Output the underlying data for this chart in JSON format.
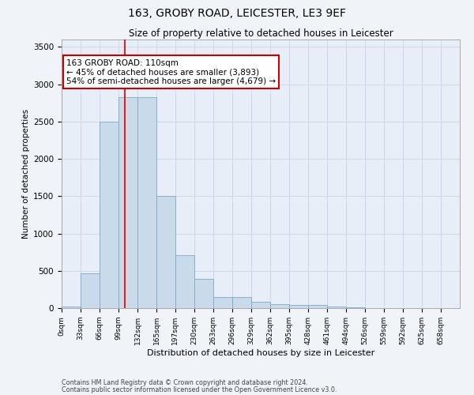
{
  "title1": "163, GROBY ROAD, LEICESTER, LE3 9EF",
  "title2": "Size of property relative to detached houses in Leicester",
  "xlabel": "Distribution of detached houses by size in Leicester",
  "ylabel": "Number of detached properties",
  "bin_labels": [
    "0sqm",
    "33sqm",
    "66sqm",
    "99sqm",
    "132sqm",
    "165sqm",
    "197sqm",
    "230sqm",
    "263sqm",
    "296sqm",
    "329sqm",
    "362sqm",
    "395sqm",
    "428sqm",
    "461sqm",
    "494sqm",
    "526sqm",
    "559sqm",
    "592sqm",
    "625sqm",
    "658sqm"
  ],
  "bin_edges": [
    0,
    33,
    66,
    99,
    132,
    165,
    197,
    230,
    263,
    296,
    329,
    362,
    395,
    428,
    461,
    494,
    526,
    559,
    592,
    625,
    658
  ],
  "bar_heights": [
    20,
    470,
    2500,
    2830,
    2830,
    1500,
    710,
    390,
    150,
    150,
    80,
    55,
    45,
    45,
    20,
    10,
    5,
    5,
    3,
    2,
    0
  ],
  "bar_color": "#c9daea",
  "bar_edge_color": "#7aaac8",
  "grid_color": "#d0d8e8",
  "bg_color": "#e8eef8",
  "fig_bg_color": "#f0f4f8",
  "red_line_x": 110,
  "annotation_title": "163 GROBY ROAD: 110sqm",
  "annotation_line1": "← 45% of detached houses are smaller (3,893)",
  "annotation_line2": "54% of semi-detached houses are larger (4,679) →",
  "annotation_box_color": "#ffffff",
  "annotation_border_color": "#cc0000",
  "ylim": [
    0,
    3600
  ],
  "yticks": [
    0,
    500,
    1000,
    1500,
    2000,
    2500,
    3000,
    3500
  ],
  "footer1": "Contains HM Land Registry data © Crown copyright and database right 2024.",
  "footer2": "Contains public sector information licensed under the Open Government Licence v3.0."
}
